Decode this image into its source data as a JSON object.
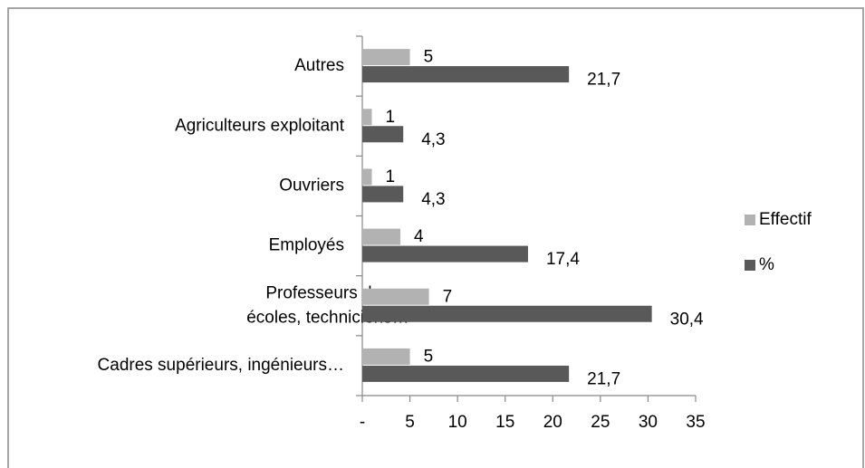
{
  "chart_data": {
    "type": "bar",
    "orientation": "horizontal",
    "categories": [
      "Cadres supérieurs, ingénieurs…",
      "Professeurs des\nécoles, techniciens…",
      "Employés",
      "Ouvriers",
      "Agriculteurs exploitant",
      "Autres"
    ],
    "series": [
      {
        "name": "Effectif",
        "color": "#b2b2b2",
        "values": [
          5,
          7,
          4,
          1,
          1,
          5
        ]
      },
      {
        "name": "%",
        "color": "#595959",
        "values": [
          21.7,
          30.4,
          17.4,
          4.3,
          4.3,
          21.7
        ],
        "value_labels": [
          "21,7",
          "30,4",
          "17,4",
          "4,3",
          "4,3",
          "21,7"
        ]
      }
    ],
    "xlim": [
      0,
      35
    ],
    "xticks": [
      {
        "value": 0,
        "label": "-"
      },
      5,
      10,
      15,
      20,
      25,
      30,
      35
    ],
    "legend": "right"
  }
}
